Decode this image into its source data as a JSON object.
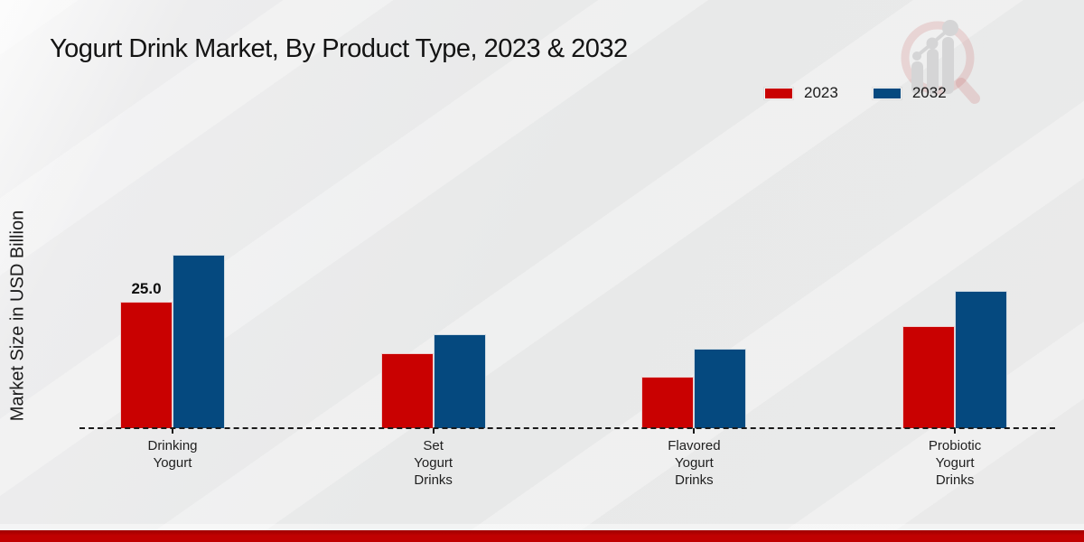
{
  "page": {
    "title": "Yogurt Drink Market, By Product Type, 2023 & 2032",
    "y_axis_label": "Market Size in USD Billion",
    "watermark_icon": "magnifier-bar-chart-logo"
  },
  "legend": {
    "items": [
      {
        "label": "2023",
        "color": "#c90101"
      },
      {
        "label": "2032",
        "color": "#05497f"
      }
    ]
  },
  "chart_data": {
    "type": "bar",
    "title": "Yogurt Drink Market, By Product Type, 2023 & 2032",
    "xlabel": "",
    "ylabel": "Market Size in USD Billion",
    "categories": [
      "Drinking Yogurt",
      "Set Yogurt Drinks",
      "Flavored Yogurt Drinks",
      "Probiotic Yogurt Drinks"
    ],
    "category_label_lines": [
      [
        "Drinking",
        "Yogurt"
      ],
      [
        "Set",
        "Yogurt",
        "Drinks"
      ],
      [
        "Flavored",
        "Yogurt",
        "Drinks"
      ],
      [
        "Probiotic",
        "Yogurt",
        "Drinks"
      ]
    ],
    "series": [
      {
        "name": "2023",
        "color": "#c90101",
        "values": [
          25.0,
          14.8,
          10.2,
          20.2
        ]
      },
      {
        "name": "2032",
        "color": "#05497f",
        "values": [
          34.3,
          18.6,
          15.7,
          27.1
        ]
      }
    ],
    "value_labels": [
      {
        "series_index": 0,
        "category_index": 0,
        "text": "25.0"
      }
    ],
    "ylim": [
      0,
      40
    ],
    "grid": false,
    "legend_position": "top-right",
    "baseline_style": "dashed-black",
    "y_axis_ticks_visible": false
  },
  "footer": {
    "accent_color": "#c00101"
  }
}
